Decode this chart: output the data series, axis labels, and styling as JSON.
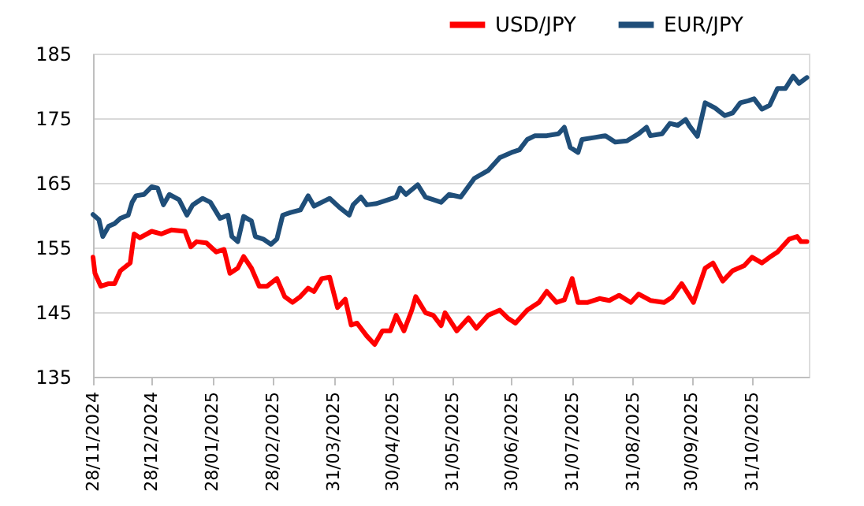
{
  "chart_data": {
    "type": "line",
    "xlim": [
      "2024-11-28",
      "2025-11-29"
    ],
    "ylim": [
      135,
      185
    ],
    "yticks": [
      135,
      145,
      155,
      165,
      175,
      185
    ],
    "xticks": [
      {
        "value": "2024-11-28",
        "label": "28/11/2024"
      },
      {
        "value": "2024-12-28",
        "label": "28/12/2024"
      },
      {
        "value": "2025-01-28",
        "label": "28/01/2025"
      },
      {
        "value": "2025-02-28",
        "label": "28/02/2025"
      },
      {
        "value": "2025-03-31",
        "label": "31/03/2025"
      },
      {
        "value": "2025-04-30",
        "label": "30/04/2025"
      },
      {
        "value": "2025-05-31",
        "label": "31/05/2025"
      },
      {
        "value": "2025-06-30",
        "label": "30/06/2025"
      },
      {
        "value": "2025-07-31",
        "label": "31/07/2025"
      },
      {
        "value": "2025-08-31",
        "label": "31/08/2025"
      },
      {
        "value": "2025-09-30",
        "label": "30/09/2025"
      },
      {
        "value": "2025-10-31",
        "label": "31/10/2025"
      }
    ],
    "grid": "y",
    "legend": "top right",
    "line_style": "solid",
    "marker": "none",
    "series": [
      {
        "name": "USD/JPY",
        "color": "#ff0000",
        "x": [
          "2024-11-28",
          "2024-11-29",
          "2024-12-02",
          "2024-12-06",
          "2024-12-09",
          "2024-12-12",
          "2024-12-17",
          "2024-12-19",
          "2024-12-22",
          "2024-12-28",
          "2025-01-02",
          "2025-01-07",
          "2025-01-14",
          "2025-01-17",
          "2025-01-20",
          "2025-01-25",
          "2025-01-30",
          "2025-02-03",
          "2025-02-06",
          "2025-02-10",
          "2025-02-13",
          "2025-02-17",
          "2025-02-21",
          "2025-02-25",
          "2025-03-02",
          "2025-03-06",
          "2025-03-10",
          "2025-03-14",
          "2025-03-18",
          "2025-03-21",
          "2025-03-25",
          "2025-03-29",
          "2025-04-02",
          "2025-04-06",
          "2025-04-09",
          "2025-04-12",
          "2025-04-17",
          "2025-04-21",
          "2025-04-25",
          "2025-04-29",
          "2025-05-02",
          "2025-05-06",
          "2025-05-10",
          "2025-05-12",
          "2025-05-17",
          "2025-05-21",
          "2025-05-25",
          "2025-05-27",
          "2025-06-02",
          "2025-06-08",
          "2025-06-12",
          "2025-06-18",
          "2025-06-24",
          "2025-06-28",
          "2025-07-02",
          "2025-07-08",
          "2025-07-14",
          "2025-07-18",
          "2025-07-23",
          "2025-07-27",
          "2025-07-31",
          "2025-08-03",
          "2025-08-08",
          "2025-08-14",
          "2025-08-19",
          "2025-08-24",
          "2025-08-30",
          "2025-09-03",
          "2025-09-09",
          "2025-09-16",
          "2025-09-20",
          "2025-09-25",
          "2025-10-01",
          "2025-10-07",
          "2025-10-11",
          "2025-10-16",
          "2025-10-21",
          "2025-10-27",
          "2025-10-31",
          "2025-11-05",
          "2025-11-09",
          "2025-11-13",
          "2025-11-19",
          "2025-11-23",
          "2025-11-25",
          "2025-11-28"
        ],
        "values": [
          153.5,
          151,
          149,
          149.4,
          149.4,
          151.4,
          152.6,
          157.1,
          156.5,
          157.5,
          157.1,
          157.7,
          157.5,
          155.1,
          155.9,
          155.7,
          154.3,
          154.7,
          151,
          151.8,
          153.6,
          151.8,
          149,
          149,
          150.2,
          147.4,
          146.5,
          147.4,
          148.7,
          148.2,
          150.2,
          150.4,
          145.7,
          147,
          143,
          143.3,
          141.3,
          140,
          142.1,
          142.1,
          144.5,
          142.1,
          145.3,
          147.4,
          144.9,
          144.5,
          142.9,
          144.9,
          142.1,
          144.1,
          142.5,
          144.5,
          145.3,
          144.1,
          143.3,
          145.3,
          146.5,
          148.2,
          146.5,
          146.9,
          150.2,
          146.5,
          146.5,
          147.1,
          146.8,
          147.6,
          146.5,
          147.8,
          146.8,
          146.5,
          147.3,
          149.4,
          146.5,
          151.8,
          152.6,
          149.8,
          151.4,
          152.2,
          153.5,
          152.6,
          153.5,
          154.3,
          156.3,
          156.7,
          155.9,
          155.9
        ]
      },
      {
        "name": "EUR/JPY",
        "color": "#1f4e79",
        "x": [
          "2024-11-28",
          "2024-12-01",
          "2024-12-03",
          "2024-12-06",
          "2024-12-09",
          "2024-12-12",
          "2024-12-16",
          "2024-12-18",
          "2024-12-20",
          "2024-12-24",
          "2024-12-28",
          "2024-12-31",
          "2025-01-03",
          "2025-01-06",
          "2025-01-11",
          "2025-01-15",
          "2025-01-18",
          "2025-01-23",
          "2025-01-27",
          "2025-02-01",
          "2025-02-05",
          "2025-02-07",
          "2025-02-10",
          "2025-02-13",
          "2025-02-17",
          "2025-02-19",
          "2025-02-23",
          "2025-02-27",
          "2025-03-02",
          "2025-03-05",
          "2025-03-09",
          "2025-03-14",
          "2025-03-18",
          "2025-03-21",
          "2025-03-25",
          "2025-03-29",
          "2025-04-03",
          "2025-04-08",
          "2025-04-10",
          "2025-04-14",
          "2025-04-17",
          "2025-04-22",
          "2025-04-28",
          "2025-05-02",
          "2025-05-04",
          "2025-05-07",
          "2025-05-13",
          "2025-05-17",
          "2025-05-25",
          "2025-05-29",
          "2025-06-04",
          "2025-06-11",
          "2025-06-18",
          "2025-06-24",
          "2025-06-30",
          "2025-07-04",
          "2025-07-08",
          "2025-07-12",
          "2025-07-18",
          "2025-07-24",
          "2025-07-27",
          "2025-07-30",
          "2025-08-03",
          "2025-08-05",
          "2025-08-11",
          "2025-08-17",
          "2025-08-22",
          "2025-08-28",
          "2025-09-03",
          "2025-09-07",
          "2025-09-09",
          "2025-09-15",
          "2025-09-19",
          "2025-09-23",
          "2025-09-27",
          "2025-09-29",
          "2025-10-03",
          "2025-10-07",
          "2025-10-12",
          "2025-10-17",
          "2025-10-21",
          "2025-10-25",
          "2025-10-29",
          "2025-11-01",
          "2025-11-05",
          "2025-11-09",
          "2025-11-13",
          "2025-11-17",
          "2025-11-21",
          "2025-11-24",
          "2025-11-28"
        ],
        "values": [
          160.1,
          159.3,
          156.7,
          158.3,
          158.7,
          159.5,
          160,
          162,
          163,
          163.2,
          164.4,
          164.2,
          161.6,
          163.2,
          162.4,
          160,
          161.6,
          162.6,
          162,
          159.5,
          160,
          156.7,
          155.9,
          159.8,
          159.1,
          156.7,
          156.3,
          155.5,
          156.3,
          160,
          160.4,
          160.8,
          163,
          161.4,
          162,
          162.6,
          161.2,
          160,
          161.6,
          162.8,
          161.6,
          161.8,
          162.4,
          162.8,
          164.2,
          163.2,
          164.7,
          162.8,
          162,
          163.2,
          162.8,
          165.7,
          166.9,
          168.9,
          169.7,
          170.1,
          171.7,
          172.3,
          172.3,
          172.6,
          173.6,
          170.5,
          169.7,
          171.7,
          172,
          172.3,
          171.3,
          171.5,
          172.6,
          173.6,
          172.3,
          172.6,
          174.2,
          173.9,
          174.8,
          173.8,
          172.2,
          177.4,
          176.6,
          175.4,
          175.8,
          177.4,
          177.7,
          178,
          176.4,
          177,
          179.6,
          179.6,
          181.5,
          180.4,
          181.3
        ]
      }
    ]
  }
}
